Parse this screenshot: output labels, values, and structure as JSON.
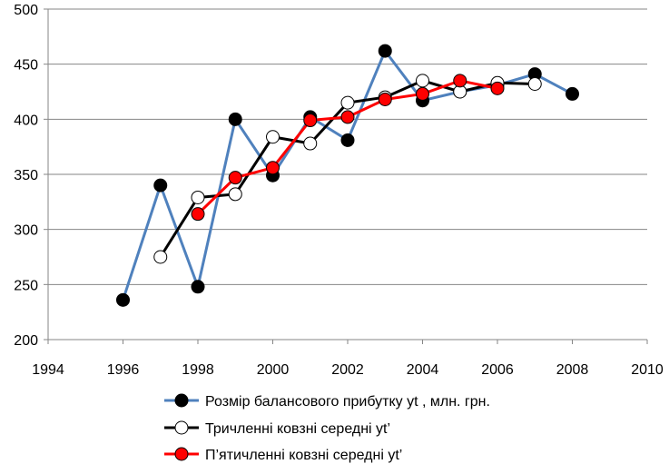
{
  "chart_data": {
    "type": "line",
    "title": "",
    "xlabel": "",
    "ylabel": "",
    "xlim": [
      1994,
      2010
    ],
    "ylim": [
      200,
      500
    ],
    "x_ticks": [
      1994,
      1996,
      1998,
      2000,
      2002,
      2004,
      2006,
      2008,
      2010
    ],
    "y_ticks": [
      200,
      250,
      300,
      350,
      400,
      450,
      500
    ],
    "grid": "horizontal",
    "legend_position": "bottom",
    "series": [
      {
        "name": "Розмір балансового прибутку yt , млн. грн.",
        "line_color": "#4F81BD",
        "marker_fill": "#000000",
        "x": [
          1996,
          1997,
          1998,
          1999,
          2000,
          2001,
          2002,
          2003,
          2004,
          2005,
          2006,
          2007,
          2008
        ],
        "y": [
          236,
          340,
          248,
          400,
          349,
          402,
          381,
          462,
          417,
          425,
          431,
          441,
          423
        ]
      },
      {
        "name": "Тричленні ковзні середні yt’",
        "line_color": "#000000",
        "marker_fill": "#FFFFFF",
        "x": [
          1997,
          1998,
          1999,
          2000,
          2001,
          2002,
          2003,
          2004,
          2005,
          2006,
          2007
        ],
        "y": [
          275,
          329,
          332,
          384,
          378,
          415,
          420,
          435,
          425,
          433,
          432
        ]
      },
      {
        "name": "П’ятичленні ковзні середні yt’",
        "line_color": "#FF0000",
        "marker_fill": "#FF0000",
        "x": [
          1998,
          1999,
          2000,
          2001,
          2002,
          2003,
          2004,
          2005,
          2006
        ],
        "y": [
          314,
          347,
          356,
          399,
          402,
          418,
          423,
          435,
          428
        ]
      }
    ]
  }
}
